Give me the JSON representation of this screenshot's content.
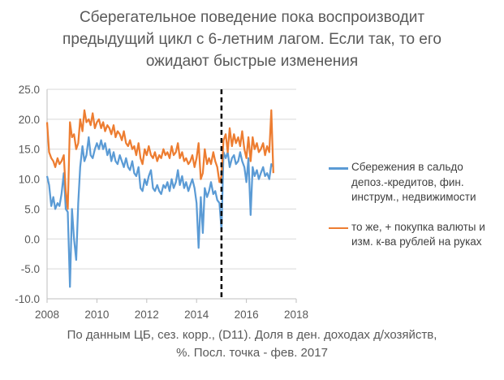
{
  "title": {
    "line1": "Сберегательное поведение пока воспроизводит",
    "line2": "предыдущий цикл с 6-летним лагом. Если так, то его",
    "line3": "ожидают быстрые изменения"
  },
  "footnote": {
    "line1": "По данным ЦБ, сез. корр., (D11). Доля в ден. доходах д/хозяйств,",
    "line2": "%. Посл. точка - фев. 2017"
  },
  "chart_data": {
    "type": "line",
    "xlim": [
      2008,
      2018
    ],
    "ylim": [
      -10,
      25
    ],
    "x_ticks": [
      "2008",
      "2010",
      "2012",
      "2014",
      "2016",
      "2018"
    ],
    "y_ticks": [
      "25.0",
      "20.0",
      "15.0",
      "10.0",
      "5.0",
      "0.0",
      "-5.0",
      "-10.0"
    ],
    "y_tick_values": [
      25,
      20,
      15,
      10,
      5,
      0,
      -5,
      -10
    ],
    "x_tick_values": [
      2008,
      2010,
      2012,
      2014,
      2016,
      2018
    ],
    "vline_x": 2015.0,
    "grid": "horizontal",
    "legend_position": "right",
    "series": [
      {
        "name": "Сбережения в сальдо депоз.-кредитов, фин. инструм., недвижимости",
        "color": "#5B9BD5",
        "points": [
          [
            2008.0,
            10.5
          ],
          [
            2008.08,
            9.0
          ],
          [
            2008.17,
            5.5
          ],
          [
            2008.25,
            7.0
          ],
          [
            2008.33,
            5.0
          ],
          [
            2008.42,
            6.0
          ],
          [
            2008.5,
            5.5
          ],
          [
            2008.58,
            7.5
          ],
          [
            2008.67,
            11.0
          ],
          [
            2008.75,
            5.0
          ],
          [
            2008.83,
            4.5
          ],
          [
            2008.92,
            -8.0
          ],
          [
            2009.0,
            5.0
          ],
          [
            2009.08,
            0.0
          ],
          [
            2009.17,
            -3.5
          ],
          [
            2009.25,
            6.0
          ],
          [
            2009.33,
            12.0
          ],
          [
            2009.42,
            15.5
          ],
          [
            2009.5,
            13.0
          ],
          [
            2009.58,
            14.0
          ],
          [
            2009.67,
            17.0
          ],
          [
            2009.75,
            14.0
          ],
          [
            2009.83,
            13.5
          ],
          [
            2009.92,
            15.0
          ],
          [
            2010.0,
            16.0
          ],
          [
            2010.08,
            15.0
          ],
          [
            2010.17,
            16.5
          ],
          [
            2010.25,
            15.0
          ],
          [
            2010.33,
            16.0
          ],
          [
            2010.42,
            14.0
          ],
          [
            2010.5,
            15.0
          ],
          [
            2010.58,
            13.0
          ],
          [
            2010.67,
            14.5
          ],
          [
            2010.75,
            13.0
          ],
          [
            2010.83,
            12.5
          ],
          [
            2010.92,
            14.0
          ],
          [
            2011.0,
            13.0
          ],
          [
            2011.08,
            12.0
          ],
          [
            2011.17,
            13.5
          ],
          [
            2011.25,
            12.0
          ],
          [
            2011.33,
            11.5
          ],
          [
            2011.42,
            13.0
          ],
          [
            2011.5,
            11.0
          ],
          [
            2011.58,
            10.5
          ],
          [
            2011.67,
            12.0
          ],
          [
            2011.75,
            8.5
          ],
          [
            2011.83,
            8.0
          ],
          [
            2011.92,
            10.0
          ],
          [
            2012.0,
            9.0
          ],
          [
            2012.08,
            10.5
          ],
          [
            2012.17,
            11.5
          ],
          [
            2012.25,
            8.5
          ],
          [
            2012.33,
            8.0
          ],
          [
            2012.42,
            9.0
          ],
          [
            2012.5,
            8.0
          ],
          [
            2012.58,
            7.5
          ],
          [
            2012.67,
            9.0
          ],
          [
            2012.75,
            8.5
          ],
          [
            2012.83,
            9.5
          ],
          [
            2012.92,
            8.0
          ],
          [
            2013.0,
            10.0
          ],
          [
            2013.08,
            8.5
          ],
          [
            2013.17,
            9.5
          ],
          [
            2013.25,
            11.5
          ],
          [
            2013.33,
            9.0
          ],
          [
            2013.42,
            10.5
          ],
          [
            2013.5,
            8.5
          ],
          [
            2013.58,
            9.5
          ],
          [
            2013.67,
            8.0
          ],
          [
            2013.75,
            9.0
          ],
          [
            2013.83,
            10.0
          ],
          [
            2013.92,
            8.5
          ],
          [
            2014.0,
            6.0
          ],
          [
            2014.08,
            -1.5
          ],
          [
            2014.17,
            7.0
          ],
          [
            2014.25,
            1.0
          ],
          [
            2014.33,
            8.5
          ],
          [
            2014.42,
            7.0
          ],
          [
            2014.5,
            8.0
          ],
          [
            2014.58,
            9.5
          ],
          [
            2014.67,
            7.5
          ],
          [
            2014.75,
            8.0
          ],
          [
            2014.83,
            6.5
          ],
          [
            2014.92,
            6.0
          ],
          [
            2015.0,
            1.5
          ],
          [
            2015.08,
            14.5
          ],
          [
            2015.17,
            13.5
          ],
          [
            2015.25,
            14.5
          ],
          [
            2015.33,
            12.0
          ],
          [
            2015.42,
            13.5
          ],
          [
            2015.5,
            14.0
          ],
          [
            2015.58,
            12.5
          ],
          [
            2015.67,
            13.0
          ],
          [
            2015.75,
            14.5
          ],
          [
            2015.83,
            13.0
          ],
          [
            2015.92,
            12.0
          ],
          [
            2016.0,
            9.5
          ],
          [
            2016.08,
            13.5
          ],
          [
            2016.17,
            4.0
          ],
          [
            2016.25,
            12.0
          ],
          [
            2016.33,
            10.5
          ],
          [
            2016.42,
            11.5
          ],
          [
            2016.5,
            10.0
          ],
          [
            2016.58,
            11.0
          ],
          [
            2016.67,
            12.0
          ],
          [
            2016.75,
            10.5
          ],
          [
            2016.83,
            11.0
          ],
          [
            2016.92,
            10.0
          ],
          [
            2017.0,
            12.5
          ],
          [
            2017.08,
            12.0
          ]
        ]
      },
      {
        "name": "то же, + покупка валюты и изм. к-ва рублей на руках",
        "color": "#ED7D31",
        "points": [
          [
            2008.0,
            19.5
          ],
          [
            2008.08,
            14.5
          ],
          [
            2008.17,
            13.5
          ],
          [
            2008.25,
            13.0
          ],
          [
            2008.33,
            12.0
          ],
          [
            2008.42,
            13.5
          ],
          [
            2008.5,
            12.5
          ],
          [
            2008.58,
            13.0
          ],
          [
            2008.67,
            14.0
          ],
          [
            2008.75,
            8.0
          ],
          [
            2008.83,
            5.0
          ],
          [
            2008.92,
            19.5
          ],
          [
            2009.0,
            17.0
          ],
          [
            2009.08,
            17.5
          ],
          [
            2009.17,
            15.0
          ],
          [
            2009.25,
            16.0
          ],
          [
            2009.33,
            20.0
          ],
          [
            2009.42,
            18.0
          ],
          [
            2009.5,
            21.5
          ],
          [
            2009.58,
            19.5
          ],
          [
            2009.67,
            20.0
          ],
          [
            2009.75,
            19.0
          ],
          [
            2009.83,
            21.0
          ],
          [
            2009.92,
            18.5
          ],
          [
            2010.0,
            19.5
          ],
          [
            2010.08,
            20.0
          ],
          [
            2010.17,
            18.5
          ],
          [
            2010.25,
            19.5
          ],
          [
            2010.33,
            18.0
          ],
          [
            2010.42,
            19.0
          ],
          [
            2010.5,
            18.5
          ],
          [
            2010.58,
            17.5
          ],
          [
            2010.67,
            19.0
          ],
          [
            2010.75,
            17.0
          ],
          [
            2010.83,
            18.0
          ],
          [
            2010.92,
            17.5
          ],
          [
            2011.0,
            16.5
          ],
          [
            2011.08,
            18.0
          ],
          [
            2011.17,
            16.0
          ],
          [
            2011.25,
            15.5
          ],
          [
            2011.33,
            16.5
          ],
          [
            2011.42,
            15.0
          ],
          [
            2011.5,
            15.5
          ],
          [
            2011.58,
            14.0
          ],
          [
            2011.67,
            16.0
          ],
          [
            2011.75,
            13.5
          ],
          [
            2011.83,
            12.5
          ],
          [
            2011.92,
            15.0
          ],
          [
            2012.0,
            14.0
          ],
          [
            2012.08,
            15.5
          ],
          [
            2012.17,
            14.0
          ],
          [
            2012.25,
            13.5
          ],
          [
            2012.33,
            14.5
          ],
          [
            2012.42,
            13.0
          ],
          [
            2012.5,
            14.0
          ],
          [
            2012.58,
            13.5
          ],
          [
            2012.67,
            15.0
          ],
          [
            2012.75,
            14.0
          ],
          [
            2012.83,
            14.5
          ],
          [
            2012.92,
            13.5
          ],
          [
            2013.0,
            15.5
          ],
          [
            2013.08,
            14.0
          ],
          [
            2013.17,
            14.5
          ],
          [
            2013.25,
            16.0
          ],
          [
            2013.33,
            13.5
          ],
          [
            2013.42,
            14.5
          ],
          [
            2013.5,
            13.0
          ],
          [
            2013.58,
            13.5
          ],
          [
            2013.67,
            12.5
          ],
          [
            2013.75,
            13.0
          ],
          [
            2013.83,
            14.0
          ],
          [
            2013.92,
            12.0
          ],
          [
            2014.0,
            13.5
          ],
          [
            2014.08,
            16.0
          ],
          [
            2014.17,
            10.0
          ],
          [
            2014.25,
            11.0
          ],
          [
            2014.33,
            15.0
          ],
          [
            2014.42,
            12.5
          ],
          [
            2014.5,
            13.5
          ],
          [
            2014.58,
            12.5
          ],
          [
            2014.67,
            14.5
          ],
          [
            2014.75,
            13.0
          ],
          [
            2014.83,
            12.0
          ],
          [
            2014.92,
            9.5
          ],
          [
            2015.0,
            10.5
          ],
          [
            2015.08,
            16.5
          ],
          [
            2015.17,
            17.5
          ],
          [
            2015.25,
            14.5
          ],
          [
            2015.33,
            18.5
          ],
          [
            2015.42,
            15.5
          ],
          [
            2015.5,
            17.5
          ],
          [
            2015.58,
            16.0
          ],
          [
            2015.67,
            17.0
          ],
          [
            2015.75,
            15.5
          ],
          [
            2015.83,
            18.0
          ],
          [
            2015.92,
            15.0
          ],
          [
            2016.0,
            13.5
          ],
          [
            2016.08,
            17.0
          ],
          [
            2016.17,
            13.0
          ],
          [
            2016.25,
            17.0
          ],
          [
            2016.33,
            15.0
          ],
          [
            2016.42,
            16.0
          ],
          [
            2016.5,
            14.5
          ],
          [
            2016.58,
            15.0
          ],
          [
            2016.67,
            16.0
          ],
          [
            2016.75,
            14.0
          ],
          [
            2016.83,
            15.5
          ],
          [
            2016.92,
            14.5
          ],
          [
            2017.0,
            21.5
          ],
          [
            2017.08,
            11.0
          ]
        ]
      }
    ]
  }
}
